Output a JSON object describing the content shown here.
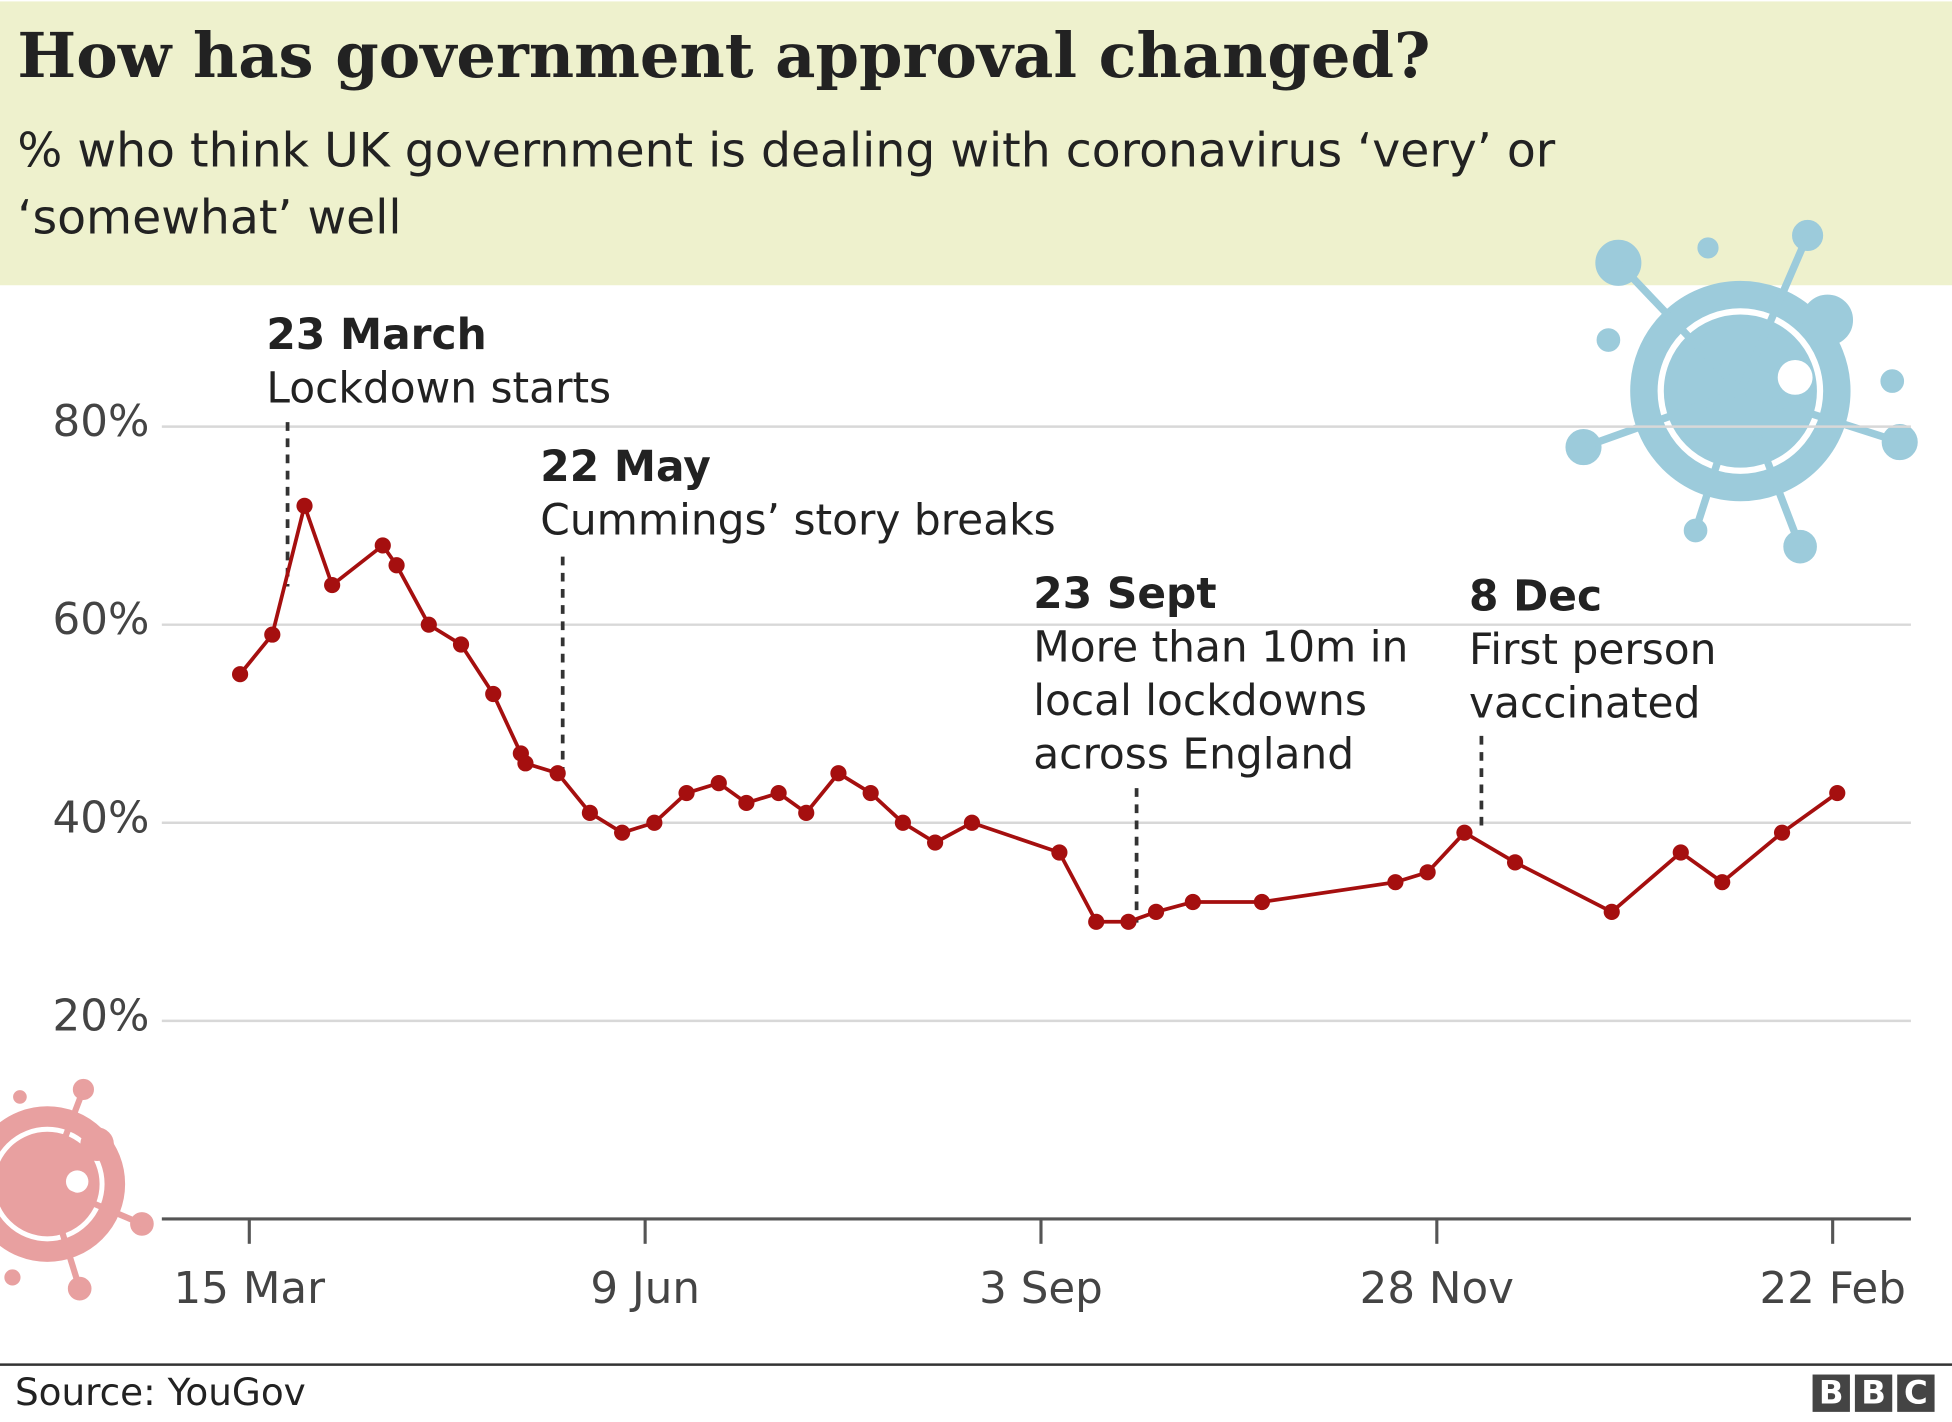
{
  "chart_data": {
    "type": "line",
    "title": "How has government approval changed?",
    "subtitle": [
      "% who think UK government is dealing with coronavirus ‘very’ or",
      "‘somewhat’ well"
    ],
    "x": [
      "13 Mar",
      "20 Mar",
      "27 Mar",
      "2 Apr",
      "13 Apr",
      "16 Apr",
      "23 Apr",
      "30 Apr",
      "7 May",
      "13 May",
      "14 May",
      "21 May",
      "28 May",
      "4 Jun",
      "11 Jun",
      "18 Jun",
      "25 Jun",
      "1 Jul",
      "8 Jul",
      "14 Jul",
      "21 Jul",
      "28 Jul",
      "4 Aug",
      "11 Aug",
      "19 Aug",
      "7 Sep",
      "15 Sep",
      "22 Sep",
      "28 Sep",
      "6 Oct",
      "21 Oct",
      "19 Nov",
      "26 Nov",
      "4 Dec",
      "15 Dec",
      "5 Jan",
      "20 Jan",
      "29 Jan",
      "11 Feb",
      "23 Feb"
    ],
    "series": [
      {
        "name": "Approval",
        "color": "#a50f0f",
        "values": [
          55,
          59,
          72,
          64,
          68,
          66,
          60,
          58,
          53,
          47,
          46,
          45,
          41,
          39,
          40,
          43,
          44,
          42,
          43,
          41,
          45,
          43,
          40,
          38,
          40,
          37,
          30,
          30,
          31,
          32,
          32,
          34,
          35,
          39,
          36,
          31,
          37,
          34,
          39,
          43
        ]
      }
    ],
    "xlim": [
      "24 Feb",
      "11 Mar"
    ],
    "xticks": [
      "15 Mar",
      "9 Jun",
      "3 Sep",
      "28 Nov",
      "22 Feb"
    ],
    "ylim": [
      0,
      90
    ],
    "yticks": [
      {
        "value": 20,
        "label": "20%"
      },
      {
        "value": 40,
        "label": "40%"
      },
      {
        "value": 60,
        "label": "60%"
      },
      {
        "value": 80,
        "label": "80%"
      }
    ],
    "grid": true,
    "annotations": [
      {
        "title": "23 March",
        "text": [
          "Lockdown starts"
        ]
      },
      {
        "title": "22 May",
        "text": [
          "Cummings’ story breaks"
        ]
      },
      {
        "title": "23 Sept",
        "text": [
          "More than 10m in",
          "local lockdowns",
          "across England"
        ]
      },
      {
        "title": "8 Dec",
        "text": [
          "First person",
          "vaccinated"
        ]
      }
    ],
    "source": "Source: YouGov",
    "logo": [
      "B",
      "B",
      "C"
    ]
  }
}
